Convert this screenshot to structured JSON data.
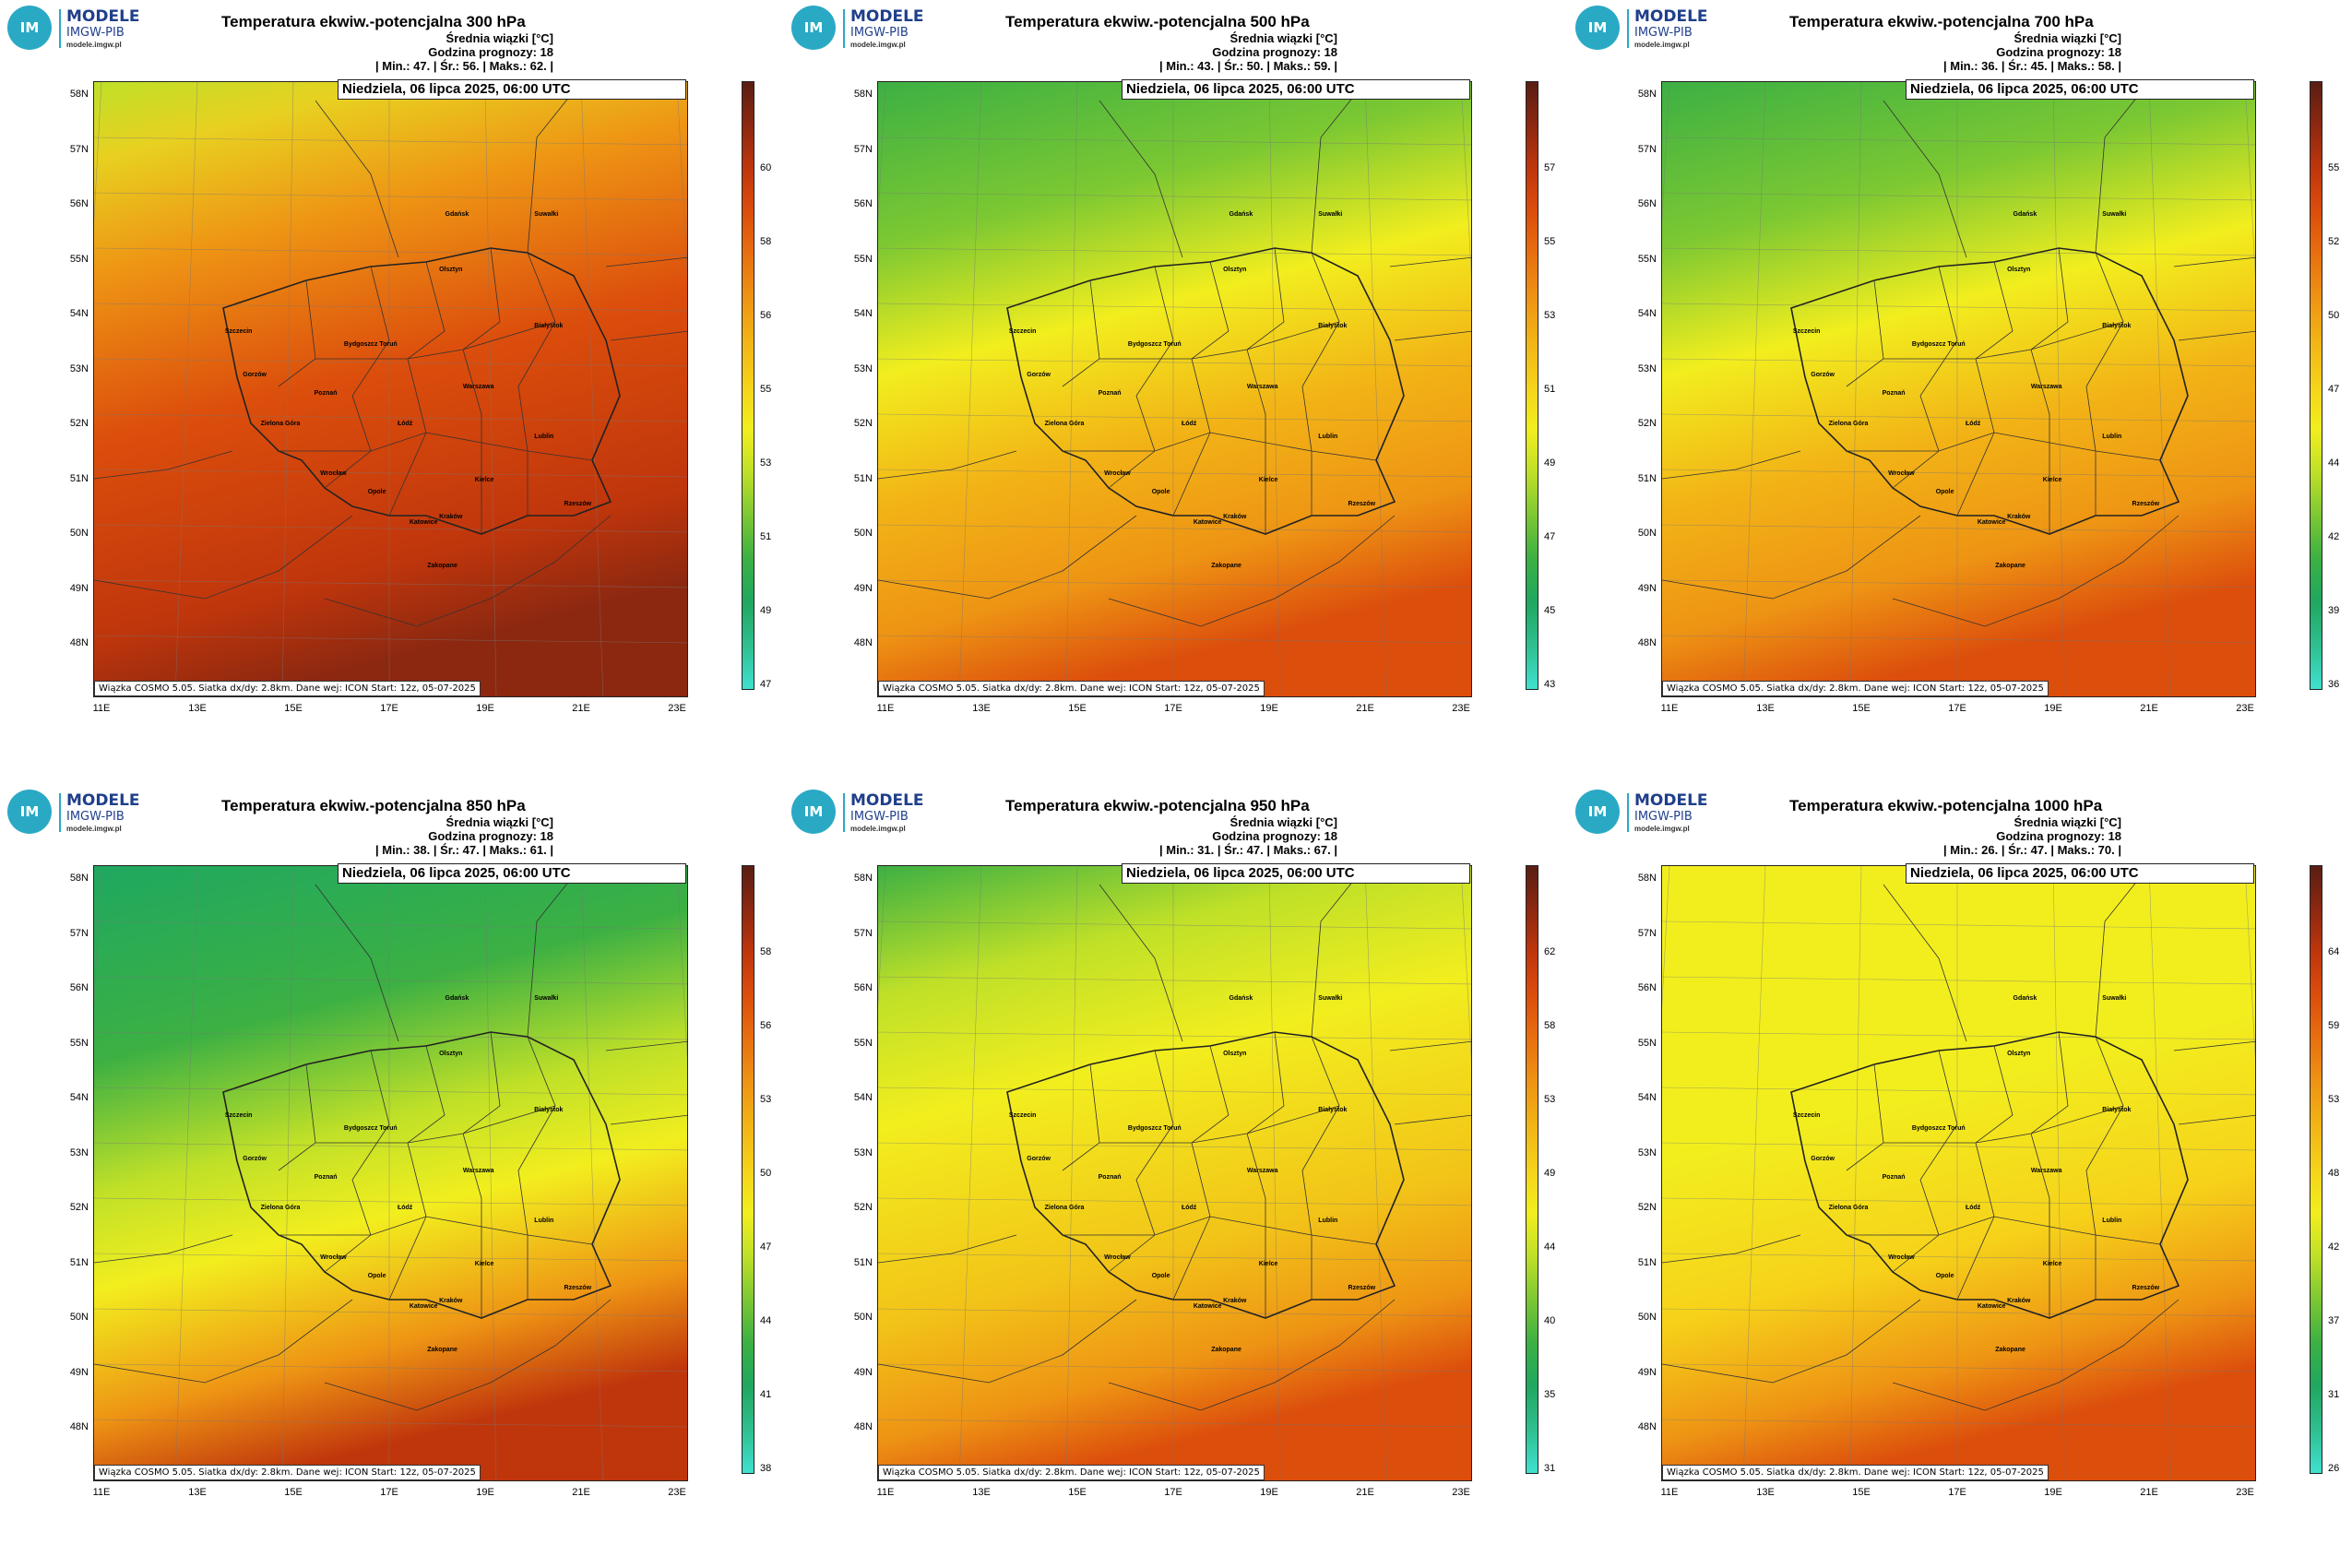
{
  "logo": {
    "circle": "IM GW",
    "line1": "MODELE",
    "line2": "IMGW-PIB",
    "line3": "modele.imgw.pl"
  },
  "header_common": {
    "line1": "Średnia wiązki [°C]",
    "line2": "Godzina prognozy: 18"
  },
  "date": "Niedziela, 06 lipca 2025, 06:00 UTC",
  "info": "Wiązka  COSMO  5.05.  Siatka  dx/dy:  2.8km.  Dane  wej:  ICON  Start:  12z,  05-07-2025",
  "lat_labels": [
    "58N",
    "57N",
    "56N",
    "55N",
    "54N",
    "53N",
    "52N",
    "51N",
    "50N",
    "49N",
    "48N"
  ],
  "lon_labels": [
    "11E",
    "13E",
    "15E",
    "17E",
    "19E",
    "21E",
    "23E"
  ],
  "cities": [
    "Gdańsk",
    "Olsztyn",
    "Szczecin",
    "Bydgoszcz Toruń",
    "Białystok",
    "Gorzów",
    "Poznań",
    "Warszawa",
    "Zielona Góra",
    "Łódź",
    "Lublin",
    "Wrocław",
    "Opole",
    "Kielce",
    "Rzeszów",
    "Katowice",
    "Kraków",
    "Zakopane",
    "Suwałki"
  ],
  "palette": [
    "#40e0d0",
    "#2fbf8f",
    "#1fa860",
    "#3cb043",
    "#7cc832",
    "#bfe028",
    "#f2ee1e",
    "#f6d21a",
    "#f2b416",
    "#ee9414",
    "#e87010",
    "#dc4e0c",
    "#c0360c",
    "#8c2810",
    "#5a1e14"
  ],
  "panels": [
    {
      "title": "Temperatura ekwiw.-potencjalna 300 hPa",
      "stats": "| Min.:     47.  | Śr.:     56.  | Maks.:     62.  |",
      "cbar_ticks": [
        "60",
        "58",
        "56",
        "55",
        "53",
        "51",
        "49",
        "47"
      ],
      "field": "warm"
    },
    {
      "title": "Temperatura ekwiw.-potencjalna 500 hPa",
      "stats": "| Min.:     43.  | Śr.:     50.  | Maks.:     59.  |",
      "cbar_ticks": [
        "57",
        "55",
        "53",
        "51",
        "49",
        "47",
        "45",
        "43"
      ],
      "field": "mid"
    },
    {
      "title": "Temperatura ekwiw.-potencjalna 700 hPa",
      "stats": "| Min.:     36.  | Śr.:     45.  | Maks.:     58.  |",
      "cbar_ticks": [
        "55",
        "52",
        "50",
        "47",
        "44",
        "42",
        "39",
        "36"
      ],
      "field": "mid"
    },
    {
      "title": "Temperatura ekwiw.-potencjalna 850 hPa",
      "stats": "| Min.:     38.  | Śr.:     47.  | Maks.:     61.  |",
      "cbar_ticks": [
        "58",
        "56",
        "53",
        "50",
        "47",
        "44",
        "41",
        "38"
      ],
      "field": "cool"
    },
    {
      "title": "Temperatura ekwiw.-potencjalna 950 hPa",
      "stats": "| Min.:     31.  | Śr.:     47.  | Maks.:     67.  |",
      "cbar_ticks": [
        "62",
        "58",
        "53",
        "49",
        "44",
        "40",
        "35",
        "31"
      ],
      "field": "low"
    },
    {
      "title": "Temperatura ekwiw.-potencjalna 1000 hPa",
      "stats": "| Min.:     26.  | Śr.:     47.  | Maks.:     70.  |",
      "cbar_ticks": [
        "64",
        "59",
        "53",
        "48",
        "42",
        "37",
        "31",
        "26"
      ],
      "field": "surface"
    }
  ]
}
